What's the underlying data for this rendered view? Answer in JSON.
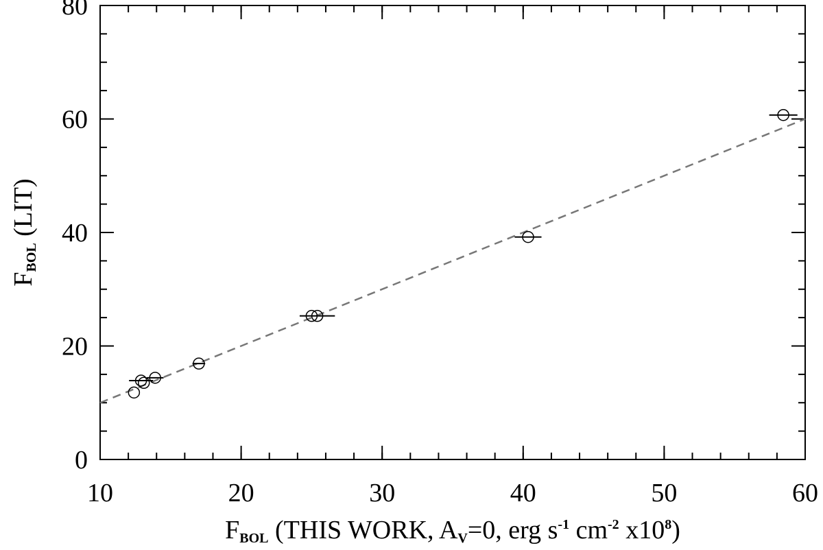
{
  "chart_data": {
    "type": "scatter",
    "xlabel": [
      "F",
      "BOL",
      " (THIS WORK, A",
      "V",
      "=0, erg s",
      "-1",
      " cm",
      "-2",
      " x10",
      "8",
      ")"
    ],
    "xlabel_styles": [
      "normal",
      "sub",
      "normal",
      "sub",
      "normal",
      "sup",
      "normal",
      "sup",
      "normal",
      "sup",
      "normal"
    ],
    "ylabel": [
      "F",
      "BOL",
      " (LIT)"
    ],
    "ylabel_styles": [
      "normal",
      "sub",
      "normal"
    ],
    "xlim": [
      10,
      60
    ],
    "ylim": [
      0,
      80
    ],
    "xticks": [
      10,
      20,
      30,
      40,
      50,
      60
    ],
    "yticks": [
      0,
      20,
      40,
      60,
      80
    ],
    "xminor": 2,
    "yminor": 5,
    "identity_line": true,
    "identity_line_color": "#777777",
    "series": [
      {
        "color": "#000000",
        "x": [
          12.4,
          12.9,
          13.1,
          13.9,
          17.0,
          25.0,
          25.4,
          40.35,
          58.45
        ],
        "values": [
          11.8,
          13.9,
          13.5,
          14.4,
          16.9,
          25.3,
          25.3,
          39.2,
          60.7
        ],
        "xerr": [
          null,
          0.85,
          null,
          0.6,
          0.45,
          null,
          1.25,
          0.95,
          1.0
        ]
      }
    ]
  }
}
